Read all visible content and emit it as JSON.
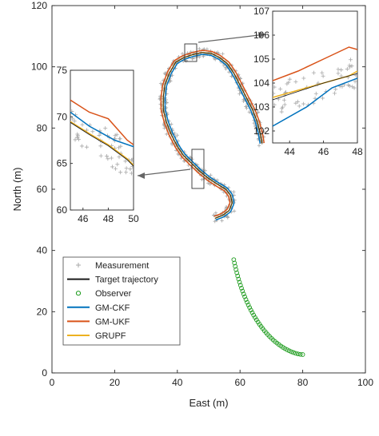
{
  "chart_data": {
    "type": "line",
    "xlabel": "East (m)",
    "ylabel": "North (m)",
    "xlim": [
      0,
      100
    ],
    "ylim": [
      0,
      120
    ],
    "xticks": [
      0,
      20,
      40,
      60,
      80,
      100
    ],
    "yticks": [
      0,
      20,
      40,
      60,
      80,
      100,
      120
    ],
    "grid": false,
    "legend_position": "bottom-left",
    "legend": [
      {
        "label": "Measurement",
        "marker": "plus",
        "color": "#a8a8a8"
      },
      {
        "label": "Target trajectory",
        "marker": "line",
        "color": "#1a1a1a"
      },
      {
        "label": "Observer",
        "marker": "circle",
        "color": "#1a9a1a"
      },
      {
        "label": "GM-CKF",
        "marker": "line",
        "color": "#0072BD"
      },
      {
        "label": "GM-UKF",
        "marker": "line",
        "color": "#D95319"
      },
      {
        "label": "GRUPF",
        "marker": "line",
        "color": "#EDB120"
      }
    ],
    "trajectory_path": [
      [
        67,
        75
      ],
      [
        66.5,
        78
      ],
      [
        65.5,
        82
      ],
      [
        64,
        86
      ],
      [
        62,
        90
      ],
      [
        60,
        94
      ],
      [
        58,
        98
      ],
      [
        56,
        101
      ],
      [
        53.5,
        103
      ],
      [
        51,
        104.3
      ],
      [
        48,
        104.7
      ],
      [
        45,
        104
      ],
      [
        42,
        103
      ],
      [
        39.5,
        101.5
      ],
      [
        37.5,
        98
      ],
      [
        36,
        94
      ],
      [
        35.5,
        90
      ],
      [
        35.5,
        86
      ],
      [
        36.5,
        82
      ],
      [
        38,
        78
      ],
      [
        40,
        74
      ],
      [
        42,
        71
      ],
      [
        44.5,
        68.5
      ],
      [
        47,
        66
      ],
      [
        50,
        63.5
      ],
      [
        53,
        61.5
      ],
      [
        55.5,
        60
      ],
      [
        57,
        58
      ],
      [
        57.5,
        55.5
      ],
      [
        56.5,
        53
      ],
      [
        54.5,
        51.5
      ],
      [
        52,
        50.5
      ]
    ],
    "observer_arc": {
      "start": [
        58,
        37
      ],
      "end": [
        80,
        6
      ],
      "count": 46
    },
    "insets": [
      {
        "name": "inset-upper-right",
        "xlim": [
          43,
          48
        ],
        "ylim": [
          101.5,
          107
        ],
        "xticks": [
          44,
          46,
          48
        ],
        "yticks": [
          102,
          103,
          104,
          105,
          106,
          107
        ],
        "series": [
          {
            "name": "GM-CKF",
            "x": [
              43,
              45,
              46.5,
              48
            ],
            "y": [
              102.2,
              103,
              103.8,
              104.2
            ]
          },
          {
            "name": "GM-UKF",
            "x": [
              43,
              44.5,
              46,
              47.5,
              48
            ],
            "y": [
              104.1,
              104.5,
              105,
              105.5,
              105.4
            ]
          },
          {
            "name": "GRUPF",
            "x": [
              43,
              44.5,
              46,
              47.5,
              48
            ],
            "y": [
              103.4,
              103.7,
              104.0,
              104.3,
              104.5
            ]
          },
          {
            "name": "Target trajectory",
            "x": [
              43,
              44.5,
              46,
              47.5,
              48
            ],
            "y": [
              103.3,
              103.65,
              104.0,
              104.3,
              104.4
            ]
          }
        ]
      },
      {
        "name": "inset-middle-left",
        "xlim": [
          45,
          50
        ],
        "ylim": [
          60,
          75
        ],
        "xticks": [
          46,
          48,
          50
        ],
        "yticks": [
          60,
          65,
          70,
          75
        ],
        "series": [
          {
            "name": "GM-CKF",
            "x": [
              45,
              46.5,
              48.5,
              50
            ],
            "y": [
              70.5,
              69,
              67.5,
              66.8
            ]
          },
          {
            "name": "GM-UKF",
            "x": [
              45,
              46.5,
              48,
              49.5,
              50
            ],
            "y": [
              71.8,
              70.5,
              69.8,
              67.5,
              67.0
            ]
          },
          {
            "name": "GRUPF",
            "x": [
              45,
              46.5,
              48,
              49.5,
              50
            ],
            "y": [
              69.5,
              68.2,
              67.0,
              65.5,
              64.8
            ]
          },
          {
            "name": "Target trajectory",
            "x": [
              45,
              46.5,
              48,
              49.5,
              50
            ],
            "y": [
              69.4,
              68.1,
              66.9,
              65.4,
              64.7
            ]
          }
        ]
      }
    ]
  }
}
